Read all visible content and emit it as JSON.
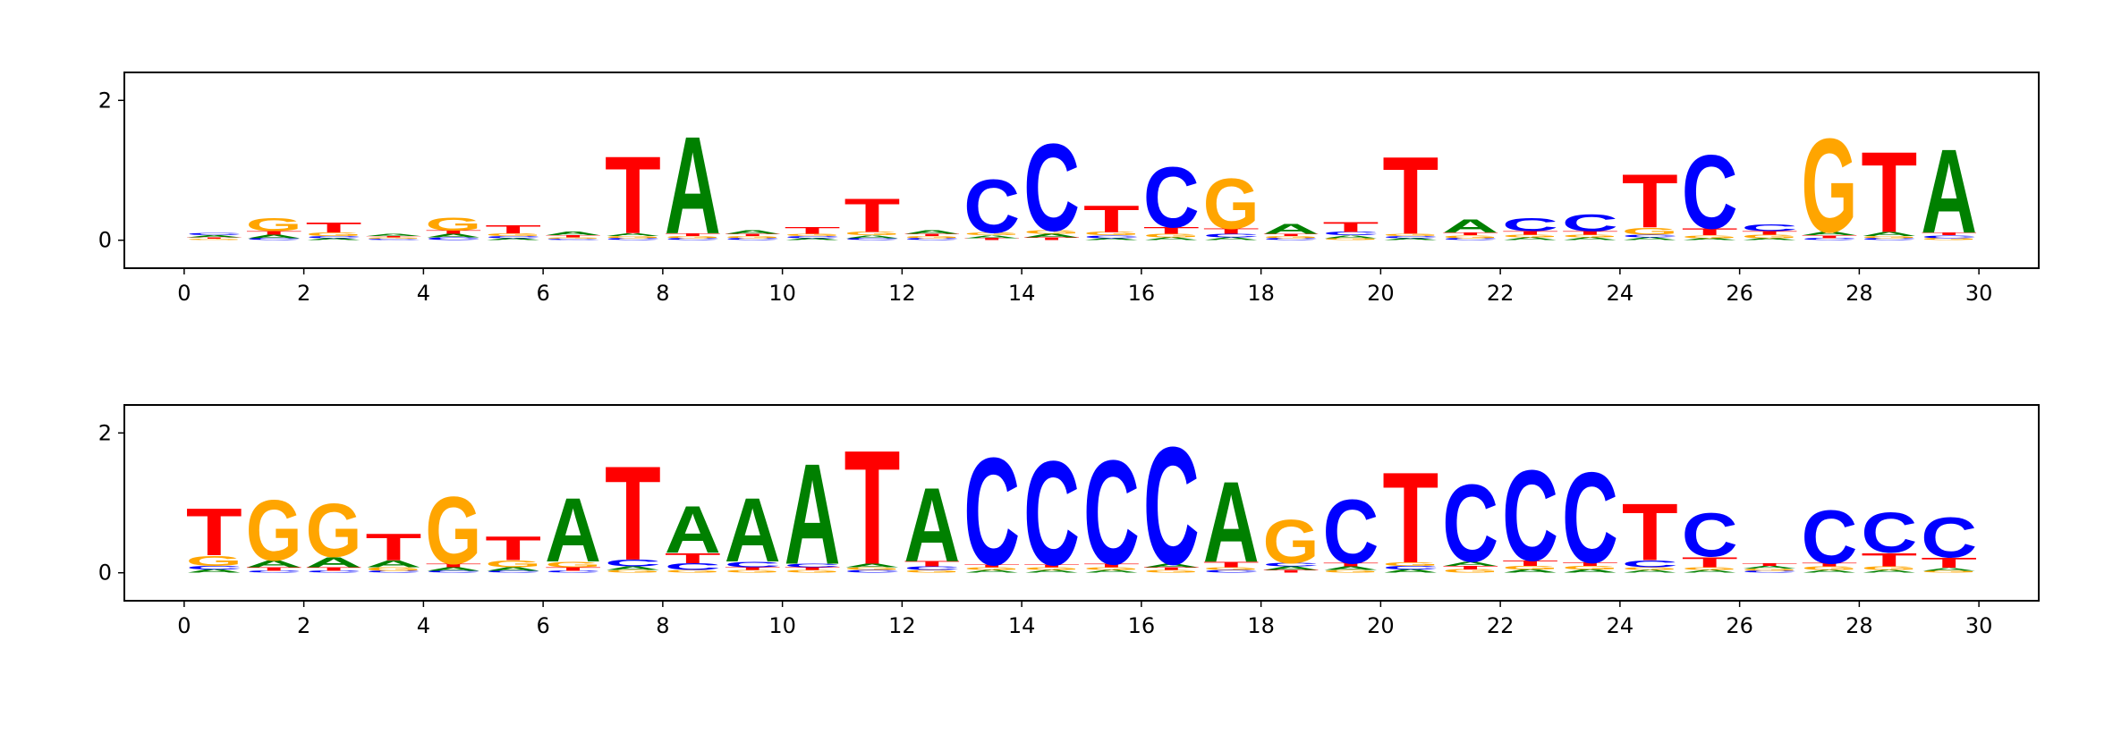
{
  "chart_data": [
    {
      "type": "logo",
      "xlim": [
        -1,
        31
      ],
      "ylim": [
        -0.4,
        2.4
      ],
      "yticks": [
        0,
        2
      ],
      "xticks": [
        0,
        2,
        4,
        6,
        8,
        10,
        12,
        14,
        16,
        18,
        20,
        22,
        24,
        26,
        28,
        30
      ],
      "series": [
        {
          "name": "A",
          "color": "#008000",
          "values": [
            0.03,
            0.05,
            0.03,
            0.03,
            0.05,
            0.03,
            0.05,
            0.04,
            1.45,
            0.05,
            0.03,
            0.04,
            0.05,
            0.04,
            0.05,
            0.03,
            0.04,
            0.04,
            0.15,
            0.04,
            0.03,
            0.2,
            0.04,
            0.04,
            0.04,
            0.03,
            0.03,
            0.05,
            0.06,
            1.25
          ]
        },
        {
          "name": "C",
          "color": "#0000ff",
          "values": [
            0.03,
            0.03,
            0.03,
            0.02,
            0.04,
            0.03,
            0.02,
            0.03,
            0.03,
            0.03,
            0.03,
            0.03,
            0.03,
            0.8,
            1.3,
            0.04,
            0.9,
            0.05,
            0.03,
            0.05,
            0.03,
            0.03,
            0.2,
            0.25,
            0.04,
            1.1,
            0.1,
            0.03,
            0.03,
            0.04
          ]
        },
        {
          "name": "G",
          "color": "#ffa500",
          "values": [
            0.02,
            0.2,
            0.05,
            0.02,
            0.2,
            0.04,
            0.02,
            0.03,
            0.03,
            0.03,
            0.03,
            0.05,
            0.03,
            0.04,
            0.05,
            0.05,
            0.05,
            0.75,
            0.03,
            0.03,
            0.03,
            0.04,
            0.04,
            0.04,
            0.1,
            0.04,
            0.05,
            1.4,
            0.03,
            0.03
          ]
        },
        {
          "name": "T",
          "color": "#ff0000",
          "values": [
            0.02,
            0.05,
            0.15,
            0.02,
            0.05,
            0.12,
            0.03,
            1.15,
            0.04,
            0.03,
            0.1,
            0.5,
            0.03,
            0.03,
            0.04,
            0.4,
            0.1,
            0.08,
            0.03,
            0.15,
            1.15,
            0.04,
            0.05,
            0.05,
            0.8,
            0.1,
            0.05,
            0.04,
            1.2,
            0.04
          ]
        }
      ]
    },
    {
      "type": "logo",
      "xlim": [
        -1,
        31
      ],
      "ylim": [
        -0.4,
        2.4
      ],
      "yticks": [
        0,
        2
      ],
      "xticks": [
        0,
        2,
        4,
        6,
        8,
        10,
        12,
        14,
        16,
        18,
        20,
        22,
        24,
        26,
        28,
        30
      ],
      "series": [
        {
          "name": "A",
          "color": "#008000",
          "values": [
            0.05,
            0.1,
            0.15,
            0.1,
            0.05,
            0.05,
            0.95,
            0.05,
            0.7,
            0.95,
            1.5,
            0.05,
            1.1,
            0.04,
            0.04,
            0.04,
            0.05,
            1.2,
            0.05,
            0.05,
            0.05,
            0.06,
            0.05,
            0.05,
            0.04,
            0.04,
            0.04,
            0.04,
            0.04,
            0.04
          ]
        },
        {
          "name": "C",
          "color": "#0000ff",
          "values": [
            0.05,
            0.03,
            0.03,
            0.03,
            0.03,
            0.03,
            0.03,
            0.1,
            0.1,
            0.08,
            0.05,
            0.04,
            0.05,
            1.6,
            1.55,
            1.55,
            1.75,
            0.04,
            0.05,
            0.95,
            0.05,
            1.15,
            1.35,
            1.35,
            0.1,
            0.65,
            0.03,
            0.8,
            0.6,
            0.6
          ]
        },
        {
          "name": "G",
          "color": "#ffa500",
          "values": [
            0.15,
            0.9,
            0.8,
            0.05,
            1.0,
            0.1,
            0.08,
            0.04,
            0.04,
            0.04,
            0.04,
            0.04,
            0.04,
            0.04,
            0.04,
            0.04,
            0.04,
            0.04,
            0.65,
            0.04,
            0.05,
            0.05,
            0.05,
            0.05,
            0.04,
            0.04,
            0.03,
            0.05,
            0.05,
            0.03
          ]
        },
        {
          "name": "T",
          "color": "#ff0000",
          "values": [
            0.7,
            0.05,
            0.05,
            0.4,
            0.05,
            0.35,
            0.05,
            1.4,
            0.15,
            0.04,
            0.04,
            1.7,
            0.08,
            0.04,
            0.04,
            0.05,
            0.04,
            0.08,
            0.04,
            0.05,
            1.35,
            0.05,
            0.08,
            0.05,
            0.85,
            0.15,
            0.04,
            0.05,
            0.2,
            0.15
          ]
        }
      ]
    }
  ]
}
